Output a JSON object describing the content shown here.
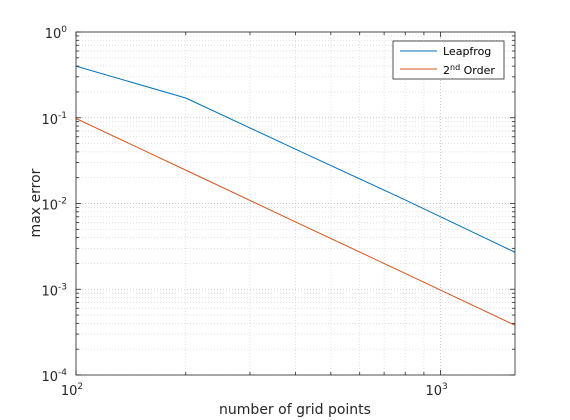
{
  "chart_data": {
    "type": "line",
    "title": "",
    "xlabel": "number of grid points",
    "ylabel": "max error",
    "xscale": "log",
    "yscale": "log",
    "xlim": [
      100,
      1600
    ],
    "ylim": [
      0.0001,
      1
    ],
    "grid": "on (major and minor, dotted)",
    "legend_position": "top-right",
    "x_ticks": [
      {
        "base": "10",
        "exp": "2"
      },
      {
        "base": "10",
        "exp": "3"
      }
    ],
    "y_ticks": [
      {
        "base": "10",
        "exp": "0",
        "value": 1
      },
      {
        "base": "10",
        "exp": "-1",
        "value": 0.1
      },
      {
        "base": "10",
        "exp": "-2",
        "value": 0.01
      },
      {
        "base": "10",
        "exp": "-3",
        "value": 0.001
      },
      {
        "base": "10",
        "exp": "-4",
        "value": 0.0001
      }
    ],
    "series": [
      {
        "name": "Leapfrog",
        "color": "#0072BD",
        "x": [
          100,
          200,
          400,
          800,
          1600
        ],
        "y": [
          0.4,
          0.17,
          0.043,
          0.011,
          0.0027
        ]
      },
      {
        "name": "2nd Order",
        "legend_base": "2",
        "legend_sup": "nd",
        "legend_rest": " Order",
        "color": "#D95319",
        "x": [
          100,
          200,
          400,
          800,
          1600
        ],
        "y": [
          0.098,
          0.0245,
          0.0061,
          0.00153,
          0.00038
        ]
      }
    ]
  }
}
